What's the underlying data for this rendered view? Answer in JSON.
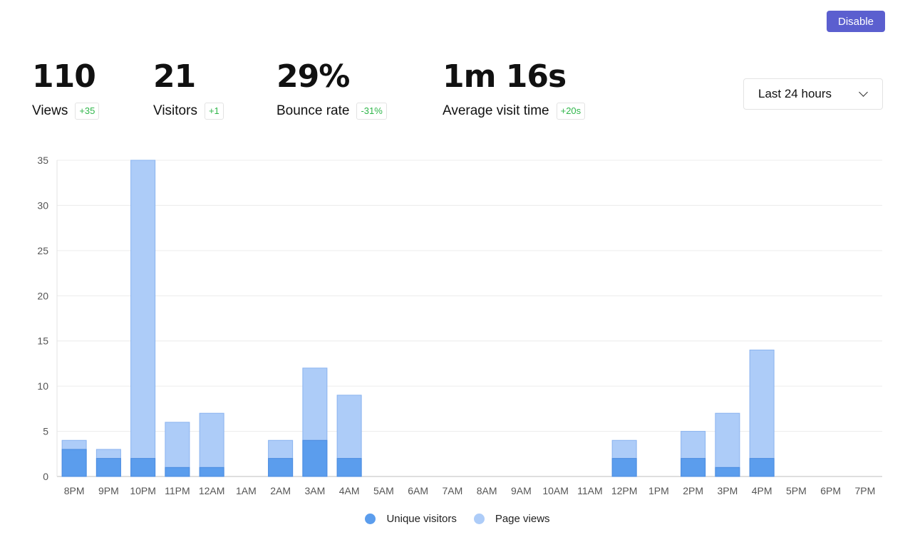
{
  "header": {
    "disable_label": "Disable"
  },
  "metrics": [
    {
      "value": "110",
      "label": "Views",
      "change": "+35"
    },
    {
      "value": "21",
      "label": "Visitors",
      "change": "+1"
    },
    {
      "value": "29%",
      "label": "Bounce rate",
      "change": "-31%"
    },
    {
      "value": "1m 16s",
      "label": "Average visit time",
      "change": "+20s"
    }
  ],
  "range_select": {
    "value": "Last 24 hours"
  },
  "colors": {
    "accent": "#5b5fcf",
    "positive_change": "#2fb64a",
    "unique_visitors": "#5b9ded",
    "page_views": "#adccf8"
  },
  "legend": {
    "unique_visitors": "Unique visitors",
    "page_views": "Page views"
  },
  "chart_data": {
    "type": "bar",
    "stacked": true,
    "categories": [
      "8PM",
      "9PM",
      "10PM",
      "11PM",
      "12AM",
      "1AM",
      "2AM",
      "3AM",
      "4AM",
      "5AM",
      "6AM",
      "7AM",
      "8AM",
      "9AM",
      "10AM",
      "11AM",
      "12PM",
      "1PM",
      "2PM",
      "3PM",
      "4PM",
      "5PM",
      "6PM",
      "7PM"
    ],
    "series": [
      {
        "name": "Unique visitors",
        "values": [
          3,
          2,
          2,
          1,
          1,
          0,
          2,
          4,
          2,
          0,
          0,
          0,
          0,
          0,
          0,
          0,
          2,
          0,
          2,
          1,
          2,
          0,
          0,
          0
        ]
      },
      {
        "name": "Page views",
        "values": [
          4,
          3,
          35,
          6,
          7,
          0,
          4,
          12,
          9,
          0,
          0,
          0,
          0,
          0,
          0,
          0,
          4,
          0,
          5,
          7,
          14,
          0,
          0,
          0
        ]
      }
    ],
    "yticks": [
      0,
      5,
      10,
      15,
      20,
      25,
      30,
      35
    ],
    "ylim": [
      0,
      35
    ],
    "grid": true,
    "legend_position": "bottom"
  }
}
